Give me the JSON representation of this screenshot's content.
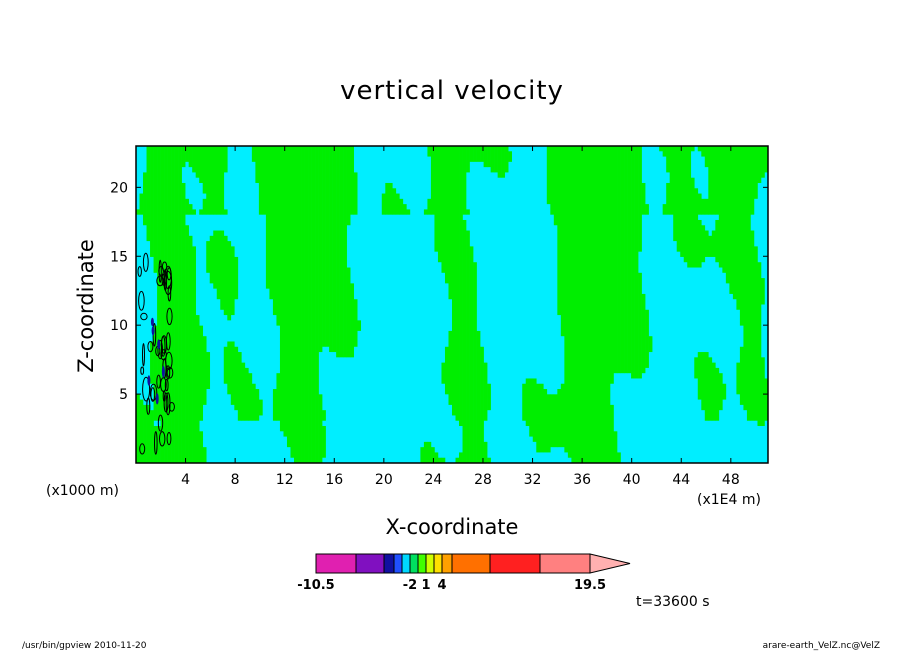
{
  "chart_data": {
    "type": "heatmap",
    "title": "vertical velocity",
    "xlabel": "X-coordinate",
    "ylabel": "Z-coordinate",
    "x_unit_left": "(x1000 m)",
    "x_unit_right": "(x1E4 m)",
    "xlim": [
      0,
      51
    ],
    "ylim": [
      0,
      23
    ],
    "x_ticks": [
      4,
      8,
      12,
      16,
      20,
      24,
      28,
      32,
      36,
      40,
      44,
      48
    ],
    "y_ticks": [
      5,
      10,
      15,
      20
    ],
    "colorbar": {
      "colors": [
        "#e020b0",
        "#8010c0",
        "#1010a0",
        "#2050ff",
        "#00d8ff",
        "#00e060",
        "#40ff00",
        "#d0ff00",
        "#ffe000",
        "#ffa000",
        "#ff7000",
        "#ff2020",
        "#ff8080",
        "#ffb0b0"
      ],
      "labels": [
        {
          "text": "-10.5",
          "index": 0
        },
        {
          "text": "-2",
          "index": 5
        },
        {
          "text": "1",
          "index": 7
        },
        {
          "text": "4",
          "index": 9
        },
        {
          "text": "19.5",
          "index": 13
        }
      ]
    },
    "field_colors": {
      "negative": "#00eeff",
      "positive": "#00ee00",
      "contour": "#000000"
    }
  },
  "annotation": {
    "time": "t=33600 s"
  },
  "footer": {
    "left": "/usr/bin/gpview  2010-11-20",
    "right": "arare-earth_VelZ.nc@VelZ"
  }
}
